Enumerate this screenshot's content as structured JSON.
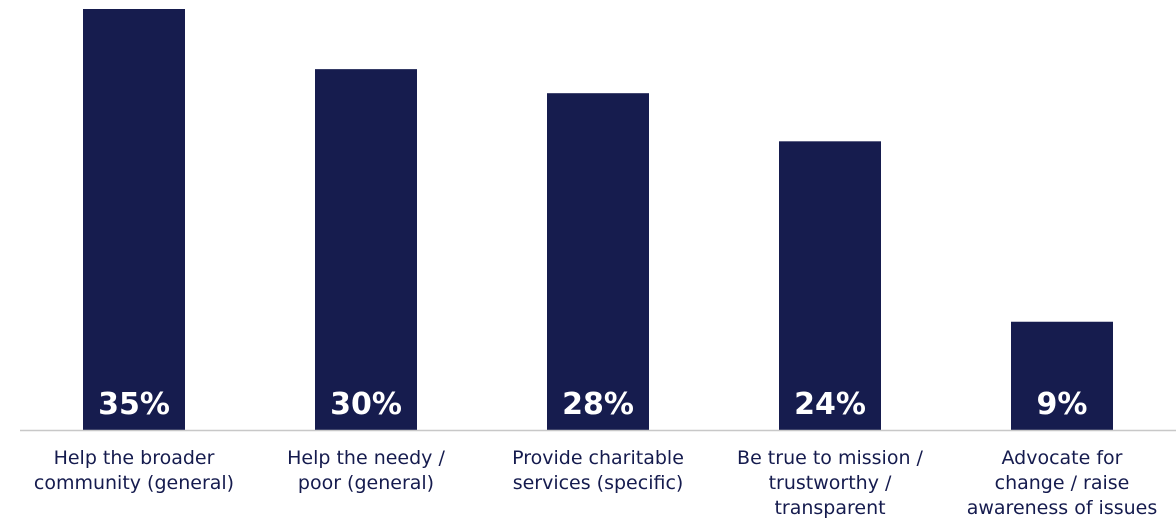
{
  "chart_data": {
    "type": "bar",
    "categories": [
      [
        "Help the broader",
        "community (general)"
      ],
      [
        "Help the needy /",
        "poor (general)"
      ],
      [
        "Provide charitable",
        "services (specific)"
      ],
      [
        "Be true to mission /",
        "trustworthy /",
        "transparent"
      ],
      [
        "Advocate for",
        "change / raise",
        "awareness of issues"
      ]
    ],
    "values": [
      35,
      30,
      28,
      24,
      9
    ],
    "value_labels": [
      "35%",
      "30%",
      "28%",
      "24%",
      "9%"
    ],
    "unit": "%",
    "ylim": [
      0,
      35
    ],
    "grid": false,
    "bar_color": "#161c4e",
    "value_label_color": "#ffffff",
    "axis_color": "#c8c8c8",
    "label_color": "#151b4e"
  }
}
